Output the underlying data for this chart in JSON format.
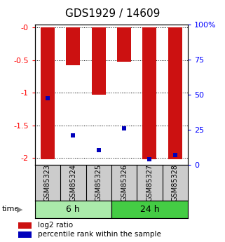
{
  "title": "GDS1929 / 14609",
  "samples": [
    "GSM85323",
    "GSM85324",
    "GSM85325",
    "GSM85326",
    "GSM85327",
    "GSM85328"
  ],
  "log2_ratio": [
    -2.02,
    -0.58,
    -1.03,
    -0.52,
    -2.02,
    -2.02
  ],
  "percentile_rank_y": [
    -1.08,
    -1.65,
    -1.88,
    -1.55,
    -2.02,
    -1.95
  ],
  "groups": [
    {
      "label": "6 h",
      "indices": [
        0,
        1,
        2
      ],
      "color": "#aaeaaa"
    },
    {
      "label": "24 h",
      "indices": [
        3,
        4,
        5
      ],
      "color": "#44cc44"
    }
  ],
  "ylim": [
    -2.1,
    0.05
  ],
  "left_ticks": [
    0.0,
    -0.5,
    -1.0,
    -1.5,
    -2.0
  ],
  "left_tick_labels": [
    "-0",
    "-0.5",
    "-1",
    "-1.5",
    "-2"
  ],
  "right_ticks": [
    100,
    75,
    50,
    25,
    0
  ],
  "right_tick_labels": [
    "100%",
    "75",
    "50",
    "25",
    "0"
  ],
  "bar_color": "#cc1111",
  "dot_color": "#0000bb",
  "bg_color": "#ffffff",
  "sample_box_color": "#cccccc",
  "time_label": "time",
  "legend_bar_label": "log2 ratio",
  "legend_dot_label": "percentile rank within the sample",
  "title_fontsize": 11,
  "tick_fontsize": 8,
  "bar_width": 0.55
}
